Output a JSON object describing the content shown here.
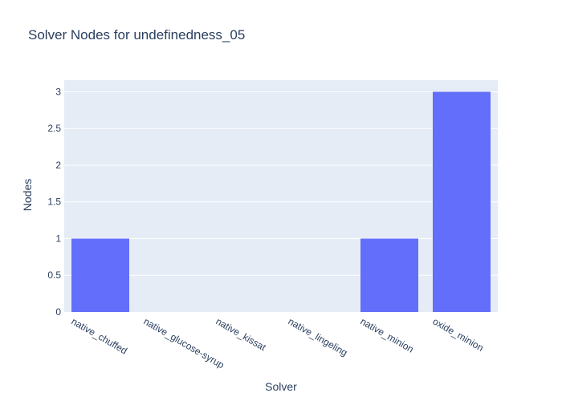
{
  "chart_data": {
    "type": "bar",
    "title": "Solver Nodes for undefinedness_05",
    "xlabel": "Solver",
    "ylabel": "Nodes",
    "categories": [
      "native_chuffed",
      "native_glucose-syrup",
      "native_kissat",
      "native_lingeling",
      "native_minion",
      "oxide_minion"
    ],
    "values": [
      1,
      0,
      0,
      0,
      1,
      3
    ],
    "ylim": [
      0,
      3.158
    ],
    "yticks": [
      0,
      0.5,
      1,
      1.5,
      2,
      2.5,
      3
    ],
    "ytick_labels": [
      "0",
      "0.5",
      "1",
      "1.5",
      "2",
      "2.5",
      "3"
    ],
    "grid": true,
    "colors": {
      "bar": "#636efa",
      "plot_bg": "#e5ecf6",
      "grid": "#ffffff",
      "text": "#2a3f5f"
    }
  }
}
